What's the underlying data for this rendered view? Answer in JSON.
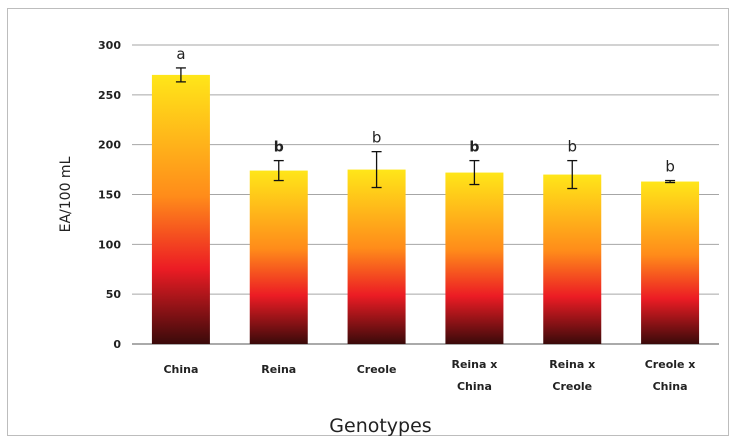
{
  "chart_data": {
    "type": "bar",
    "title": "",
    "xlabel": "Genotypes",
    "ylabel": "EA/100 mL",
    "ylim": [
      0,
      300
    ],
    "yticks": [
      0,
      50,
      100,
      150,
      200,
      250,
      300
    ],
    "grid": true,
    "categories": [
      [
        "China"
      ],
      [
        "Reina"
      ],
      [
        "Creole"
      ],
      [
        "Reina x",
        "China"
      ],
      [
        "Reina x",
        "Creole"
      ],
      [
        "Creole x",
        "China"
      ]
    ],
    "values": [
      270,
      174,
      175,
      172,
      170,
      163
    ],
    "errors": [
      7,
      10,
      18,
      12,
      14,
      1
    ],
    "significance_letters": [
      "a",
      "b",
      "b",
      "b",
      "b",
      "b"
    ],
    "letter_bold": [
      false,
      true,
      false,
      true,
      false,
      false
    ],
    "gradient_colors": [
      "#ffe619",
      "#ff8c1a",
      "#ec1c24",
      "#3a0a0a"
    ]
  }
}
